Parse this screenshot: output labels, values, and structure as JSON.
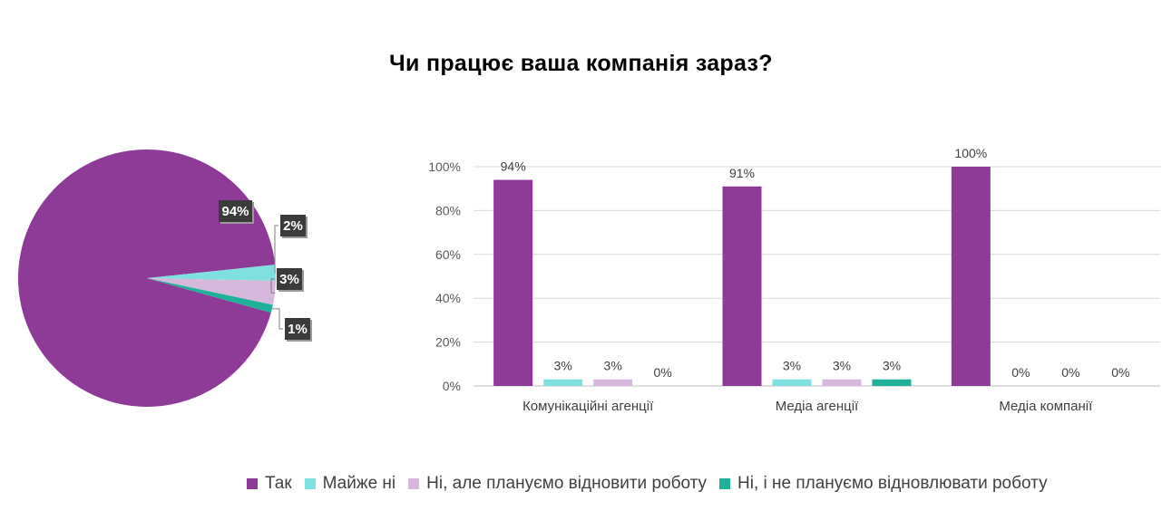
{
  "title": "Чи працює ваша компанія зараз?",
  "colors": {
    "yes": "#8E3B97",
    "almost_no": "#7FE0DF",
    "no_plan_restore": "#D5B8DC",
    "no_not_plan": "#1FB19A"
  },
  "legend": [
    {
      "label": "Так",
      "color": "#8E3B97"
    },
    {
      "label": "Майже ні",
      "color": "#7FE0DF"
    },
    {
      "label": "Ні, але плануємо відновити роботу",
      "color": "#D5B8DC"
    },
    {
      "label": "Ні, і не плануємо відновлювати роботу",
      "color": "#1FB19A"
    }
  ],
  "chart_data": [
    {
      "type": "pie",
      "slices": [
        {
          "name": "Так",
          "value": 94,
          "label": "94%",
          "color": "#8E3B97"
        },
        {
          "name": "Майже ні",
          "value": 2,
          "label": "2%",
          "color": "#7FE0DF"
        },
        {
          "name": "Ні, але плануємо відновити роботу",
          "value": 3,
          "label": "3%",
          "color": "#D5B8DC"
        },
        {
          "name": "Ні, і не плануємо відновлювати роботу",
          "value": 1,
          "label": "1%",
          "color": "#1FB19A"
        }
      ]
    },
    {
      "type": "bar",
      "categories": [
        "Комунікаційні агенції",
        "Медіа агенції",
        "Медіа компанії"
      ],
      "series": [
        {
          "name": "Так",
          "color": "#8E3B97",
          "values": [
            94,
            91,
            100
          ],
          "labels": [
            "94%",
            "91%",
            "100%"
          ]
        },
        {
          "name": "Майже ні",
          "color": "#7FE0DF",
          "values": [
            3,
            3,
            0
          ],
          "labels": [
            "3%",
            "3%",
            "0%"
          ]
        },
        {
          "name": "Ні, але плануємо відновити роботу",
          "color": "#D5B8DC",
          "values": [
            3,
            3,
            0
          ],
          "labels": [
            "3%",
            "3%",
            "0%"
          ]
        },
        {
          "name": "Ні, і не плануємо відновлювати роботу",
          "color": "#1FB19A",
          "values": [
            0,
            3,
            0
          ],
          "labels": [
            "0%",
            "3%",
            "0%"
          ]
        }
      ],
      "ylim": [
        0,
        100
      ],
      "yticks": [
        "0%",
        "20%",
        "40%",
        "60%",
        "80%",
        "100%"
      ],
      "grid": true,
      "legend_position": "bottom"
    }
  ]
}
